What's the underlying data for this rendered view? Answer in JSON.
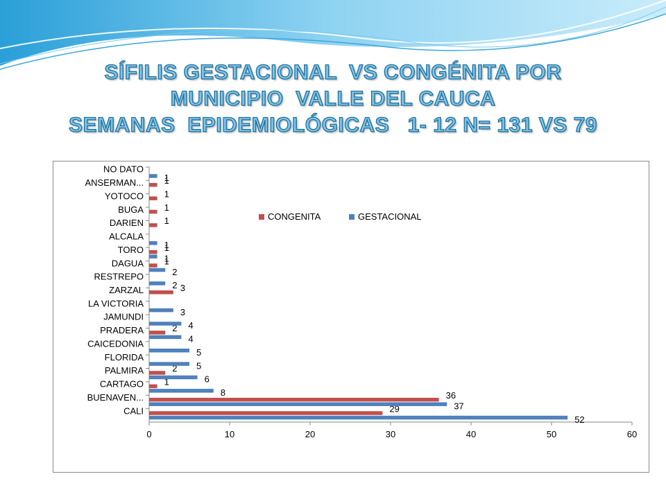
{
  "slide": {
    "title_lines": [
      "SÍFILIS GESTACIONAL  VS CONGÉNITA POR",
      "MUNICIPIO  VALLE DEL CAUCA",
      "SEMANAS  EPIDEMIOLÓGICAS   1- 12 N= 131 VS 79"
    ]
  },
  "colors": {
    "gestacional": "#4f81bd",
    "congenita": "#c0504d",
    "title_fill": "#7fc4e6",
    "title_stroke": "#1d6f9e",
    "wave": "#5cb8e6"
  },
  "chart_data": {
    "type": "bar",
    "orientation": "horizontal",
    "categories": [
      "CALI",
      "BUENAVEN...",
      "CARTAGO",
      "PALMIRA",
      "FLORIDA",
      "CAICEDONIA",
      "PRADERA",
      "JAMUNDI",
      "LA VICTORIA",
      "ZARZAL",
      "RESTREPO",
      "DAGUA",
      "TORO",
      "ALCALA",
      "DARIEN",
      "BUGA",
      "YOTOCO",
      "ANSERMAN...",
      "NO DATO"
    ],
    "series": [
      {
        "name": "CONGENITA",
        "color": "#c0504d",
        "values": [
          29,
          36,
          1,
          2,
          null,
          null,
          2,
          null,
          null,
          3,
          null,
          1,
          1,
          null,
          1,
          1,
          1,
          1,
          null
        ]
      },
      {
        "name": "GESTACIONAL",
        "color": "#4f81bd",
        "values": [
          52,
          37,
          8,
          6,
          5,
          5,
          4,
          4,
          3,
          null,
          2,
          2,
          1,
          1,
          null,
          null,
          null,
          null,
          1
        ]
      }
    ],
    "xlim": [
      0,
      60
    ],
    "xticks": [
      0,
      10,
      20,
      30,
      40,
      50,
      60
    ],
    "legend": "top-right",
    "grid": false
  }
}
